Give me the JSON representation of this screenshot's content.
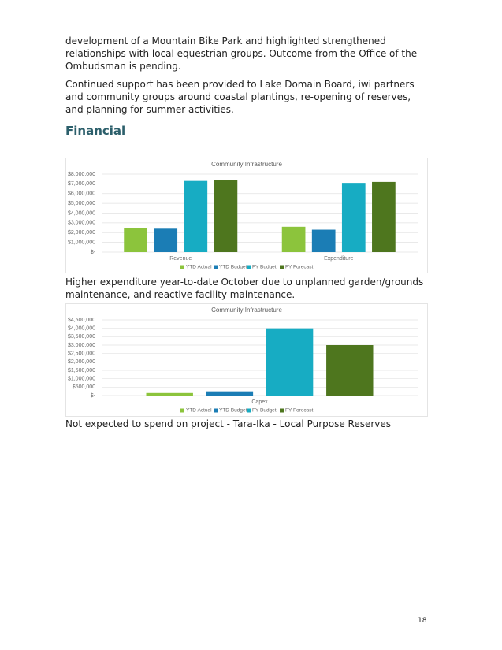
{
  "paragraphs": [
    "development of a Mountain Bike Park and highlighted strengthened relationships with local equestrian groups. Outcome from the Office of the Ombudsman is pending.",
    "Continued support has been provided to Lake Domain Board, iwi partners and community groups around coastal plantings, re-opening of reserves, and planning for summer activities."
  ],
  "heading": "Financial",
  "captions": [
    "Higher expenditure year-to-date October due to unplanned garden/grounds maintenance, and reactive facility maintenance.",
    "Not expected to spend on project - Tara-Ika - Local Purpose Reserves"
  ],
  "page_number": "18",
  "chart_data": [
    {
      "type": "bar",
      "title": "Community Infrastructure",
      "categories": [
        "Revenue",
        "Expenditure"
      ],
      "series": [
        {
          "name": "YTD Actual",
          "color": "#8cc43c",
          "values": [
            2500000,
            2600000
          ]
        },
        {
          "name": "YTD Budget",
          "color": "#1b7db5",
          "values": [
            2400000,
            2300000
          ]
        },
        {
          "name": "FY Budget",
          "color": "#17acc3",
          "values": [
            7300000,
            7100000
          ]
        },
        {
          "name": "FY Forecast",
          "color": "#4e761e",
          "values": [
            7400000,
            7200000
          ]
        }
      ],
      "ylim": [
        0,
        8000000
      ],
      "yticks": [
        {
          "value": 0,
          "label": "$-"
        },
        {
          "value": 1000000,
          "label": "$1,000,000"
        },
        {
          "value": 2000000,
          "label": "$2,000,000"
        },
        {
          "value": 3000000,
          "label": "$3,000,000"
        },
        {
          "value": 4000000,
          "label": "$4,000,000"
        },
        {
          "value": 5000000,
          "label": "$5,000,000"
        },
        {
          "value": 6000000,
          "label": "$6,000,000"
        },
        {
          "value": 7000000,
          "label": "$7,000,000"
        },
        {
          "value": 8000000,
          "label": "$8,000,000"
        }
      ],
      "grid": true,
      "legend": "bottom"
    },
    {
      "type": "bar",
      "title": "Community Infrastructure",
      "categories": [
        "Capex"
      ],
      "series": [
        {
          "name": "YTD Actual",
          "color": "#8cc43c",
          "values": [
            150000
          ]
        },
        {
          "name": "YTD Budget",
          "color": "#1b7db5",
          "values": [
            250000
          ]
        },
        {
          "name": "FY Budget",
          "color": "#17acc3",
          "values": [
            4000000
          ]
        },
        {
          "name": "FY Forecast",
          "color": "#4e761e",
          "values": [
            3000000
          ]
        }
      ],
      "ylim": [
        0,
        4500000
      ],
      "yticks": [
        {
          "value": 0,
          "label": "$-"
        },
        {
          "value": 500000,
          "label": "$500,000"
        },
        {
          "value": 1000000,
          "label": "$1,000,000"
        },
        {
          "value": 1500000,
          "label": "$1,500,000"
        },
        {
          "value": 2000000,
          "label": "$2,000,000"
        },
        {
          "value": 2500000,
          "label": "$2,500,000"
        },
        {
          "value": 3000000,
          "label": "$3,000,000"
        },
        {
          "value": 3500000,
          "label": "$3,500,000"
        },
        {
          "value": 4000000,
          "label": "$4,000,000"
        },
        {
          "value": 4500000,
          "label": "$4,500,000"
        }
      ],
      "grid": true,
      "legend": "bottom"
    }
  ]
}
